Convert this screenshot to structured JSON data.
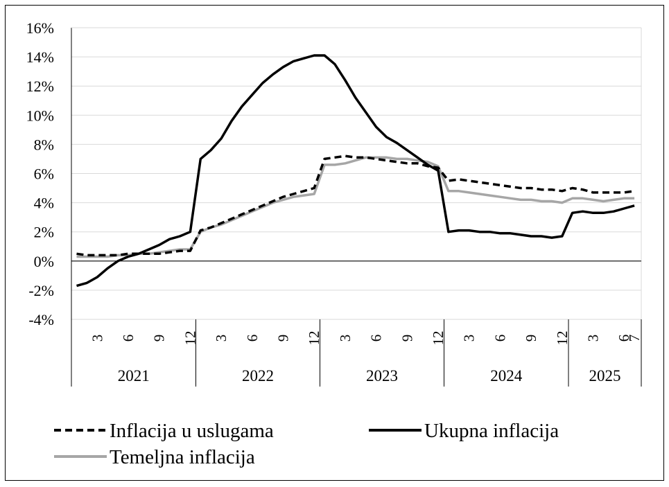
{
  "chart_data": {
    "type": "line",
    "y_ticks": [
      "16%",
      "14%",
      "12%",
      "10%",
      "8%",
      "6%",
      "4%",
      "2%",
      "0%",
      "-2%",
      "-4%"
    ],
    "ylim": [
      -4,
      16
    ],
    "grid": true,
    "legend_position": "bottom",
    "x_axis": {
      "months": [
        "3",
        "6",
        "9",
        "12",
        "3",
        "6",
        "9",
        "12",
        "3",
        "6",
        "9",
        "12",
        "3",
        "6",
        "9",
        "12",
        "3",
        "6",
        "7"
      ],
      "years": [
        "2021",
        "2022",
        "2023",
        "2024",
        "2025"
      ]
    },
    "series": [
      {
        "name": "Inflacija u uslugama",
        "style": "dashed",
        "color": "#000000",
        "values": [
          0.5,
          0.4,
          0.4,
          0.4,
          0.4,
          0.5,
          0.5,
          0.5,
          0.5,
          0.6,
          0.7,
          0.7,
          2.1,
          2.3,
          2.6,
          2.9,
          3.2,
          3.5,
          3.8,
          4.1,
          4.4,
          4.6,
          4.8,
          5.0,
          7.0,
          7.1,
          7.2,
          7.1,
          7.1,
          7.0,
          6.9,
          6.8,
          6.7,
          6.7,
          6.5,
          6.4,
          5.5,
          5.6,
          5.5,
          5.4,
          5.3,
          5.2,
          5.1,
          5.0,
          5.0,
          4.9,
          4.9,
          4.8,
          5.0,
          4.9,
          4.7,
          4.7,
          4.7,
          4.7,
          4.8
        ]
      },
      {
        "name": "Ukupna inflacija",
        "style": "solid",
        "color": "#000000",
        "values": [
          -1.7,
          -1.5,
          -1.1,
          -0.5,
          0.0,
          0.3,
          0.5,
          0.8,
          1.1,
          1.5,
          1.7,
          2.0,
          7.0,
          7.6,
          8.4,
          9.6,
          10.6,
          11.4,
          12.2,
          12.8,
          13.3,
          13.7,
          13.9,
          14.1,
          14.1,
          13.5,
          12.4,
          11.2,
          10.2,
          9.2,
          8.5,
          8.1,
          7.6,
          7.1,
          6.6,
          6.2,
          2.0,
          2.1,
          2.1,
          2.0,
          2.0,
          1.9,
          1.9,
          1.8,
          1.7,
          1.7,
          1.6,
          1.7,
          3.3,
          3.4,
          3.3,
          3.3,
          3.4,
          3.6,
          3.8
        ]
      },
      {
        "name": "Temeljna inflacija",
        "style": "solid",
        "color": "#a6a6a6",
        "values": [
          0.3,
          0.3,
          0.3,
          0.3,
          0.4,
          0.4,
          0.5,
          0.5,
          0.6,
          0.7,
          0.8,
          0.8,
          2.0,
          2.3,
          2.5,
          2.8,
          3.1,
          3.4,
          3.7,
          4.0,
          4.2,
          4.4,
          4.5,
          4.6,
          6.6,
          6.6,
          6.7,
          6.9,
          7.1,
          7.1,
          7.1,
          7.0,
          7.0,
          6.9,
          6.8,
          6.5,
          4.8,
          4.8,
          4.7,
          4.6,
          4.5,
          4.4,
          4.3,
          4.2,
          4.2,
          4.1,
          4.1,
          4.0,
          4.3,
          4.3,
          4.2,
          4.1,
          4.2,
          4.3,
          4.3
        ]
      }
    ]
  }
}
